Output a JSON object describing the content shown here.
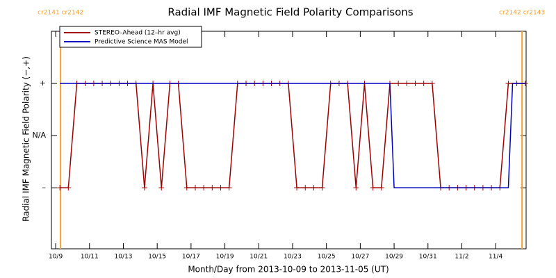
{
  "chart_data": {
    "type": "line",
    "title": "Radial IMF Magnetic Field Polarity Comparisons",
    "x_label": "Month/Day from 2013-10-09 to 2013-11-05 (UT)",
    "y_label": "Radial IMF Magnetic Field Polarity (−,+)",
    "xlim": [
      -0.25,
      27.8
    ],
    "ylim": [
      -2.17,
      2
    ],
    "xticks": [
      {
        "value": 0,
        "label": "10/9"
      },
      {
        "value": 2,
        "label": "10/11"
      },
      {
        "value": 4,
        "label": "10/13"
      },
      {
        "value": 6,
        "label": "10/15"
      },
      {
        "value": 8,
        "label": "10/17"
      },
      {
        "value": 10,
        "label": "10/19"
      },
      {
        "value": 12,
        "label": "10/21"
      },
      {
        "value": 14,
        "label": "10/23"
      },
      {
        "value": 16,
        "label": "10/25"
      },
      {
        "value": 18,
        "label": "10/27"
      },
      {
        "value": 20,
        "label": "10/29"
      },
      {
        "value": 22,
        "label": "10/31"
      },
      {
        "value": 24,
        "label": "11/2"
      },
      {
        "value": 26,
        "label": "11/4"
      }
    ],
    "yticks": [
      {
        "value": 1,
        "label": "+"
      },
      {
        "value": 0,
        "label": "N/A"
      },
      {
        "value": -1,
        "label": "–"
      }
    ],
    "legend": "upper left",
    "markers": [
      {
        "x": 0.29,
        "label": "cr2141 cr2142",
        "color": "#f5a030"
      },
      {
        "x": 27.56,
        "label": "cr2142 cr2143",
        "color": "#f5a030"
      }
    ],
    "series": [
      {
        "name": "STEREO–Ahead (12–hr avg)",
        "color": "#a00000",
        "marker": "+",
        "x": [
          0.25,
          0.75,
          1.25,
          1.75,
          2.25,
          2.75,
          3.25,
          3.75,
          4.25,
          4.75,
          5.25,
          5.75,
          6.25,
          6.75,
          7.25,
          7.75,
          8.25,
          8.75,
          9.25,
          9.75,
          10.25,
          10.75,
          11.25,
          11.75,
          12.25,
          12.75,
          13.25,
          13.75,
          14.25,
          14.75,
          15.25,
          15.75,
          16.25,
          16.75,
          17.25,
          17.75,
          18.25,
          18.75,
          19.25,
          19.75,
          20.25,
          20.75,
          21.25,
          21.75,
          22.25,
          22.75,
          23.25,
          23.75,
          24.25,
          24.75,
          25.25,
          25.75,
          26.25,
          26.75,
          27.25,
          27.75
        ],
        "values": [
          -1,
          -1,
          1,
          1,
          1,
          1,
          1,
          1,
          1,
          1,
          -1,
          1,
          -1,
          1,
          1,
          -1,
          -1,
          -1,
          -1,
          -1,
          -1,
          1,
          1,
          1,
          1,
          1,
          1,
          1,
          -1,
          -1,
          -1,
          -1,
          1,
          1,
          1,
          -1,
          1,
          -1,
          -1,
          1,
          1,
          1,
          1,
          1,
          1,
          -1,
          -1,
          -1,
          -1,
          -1,
          -1,
          -1,
          -1,
          1,
          1,
          1
        ]
      },
      {
        "name": "Predictive Science MAS Model",
        "color": "#0000c0",
        "x": [
          0.25,
          19.75,
          20.0,
          26.75,
          27.0,
          27.75
        ],
        "values": [
          1,
          1,
          -1,
          -1,
          1,
          1
        ]
      }
    ]
  }
}
